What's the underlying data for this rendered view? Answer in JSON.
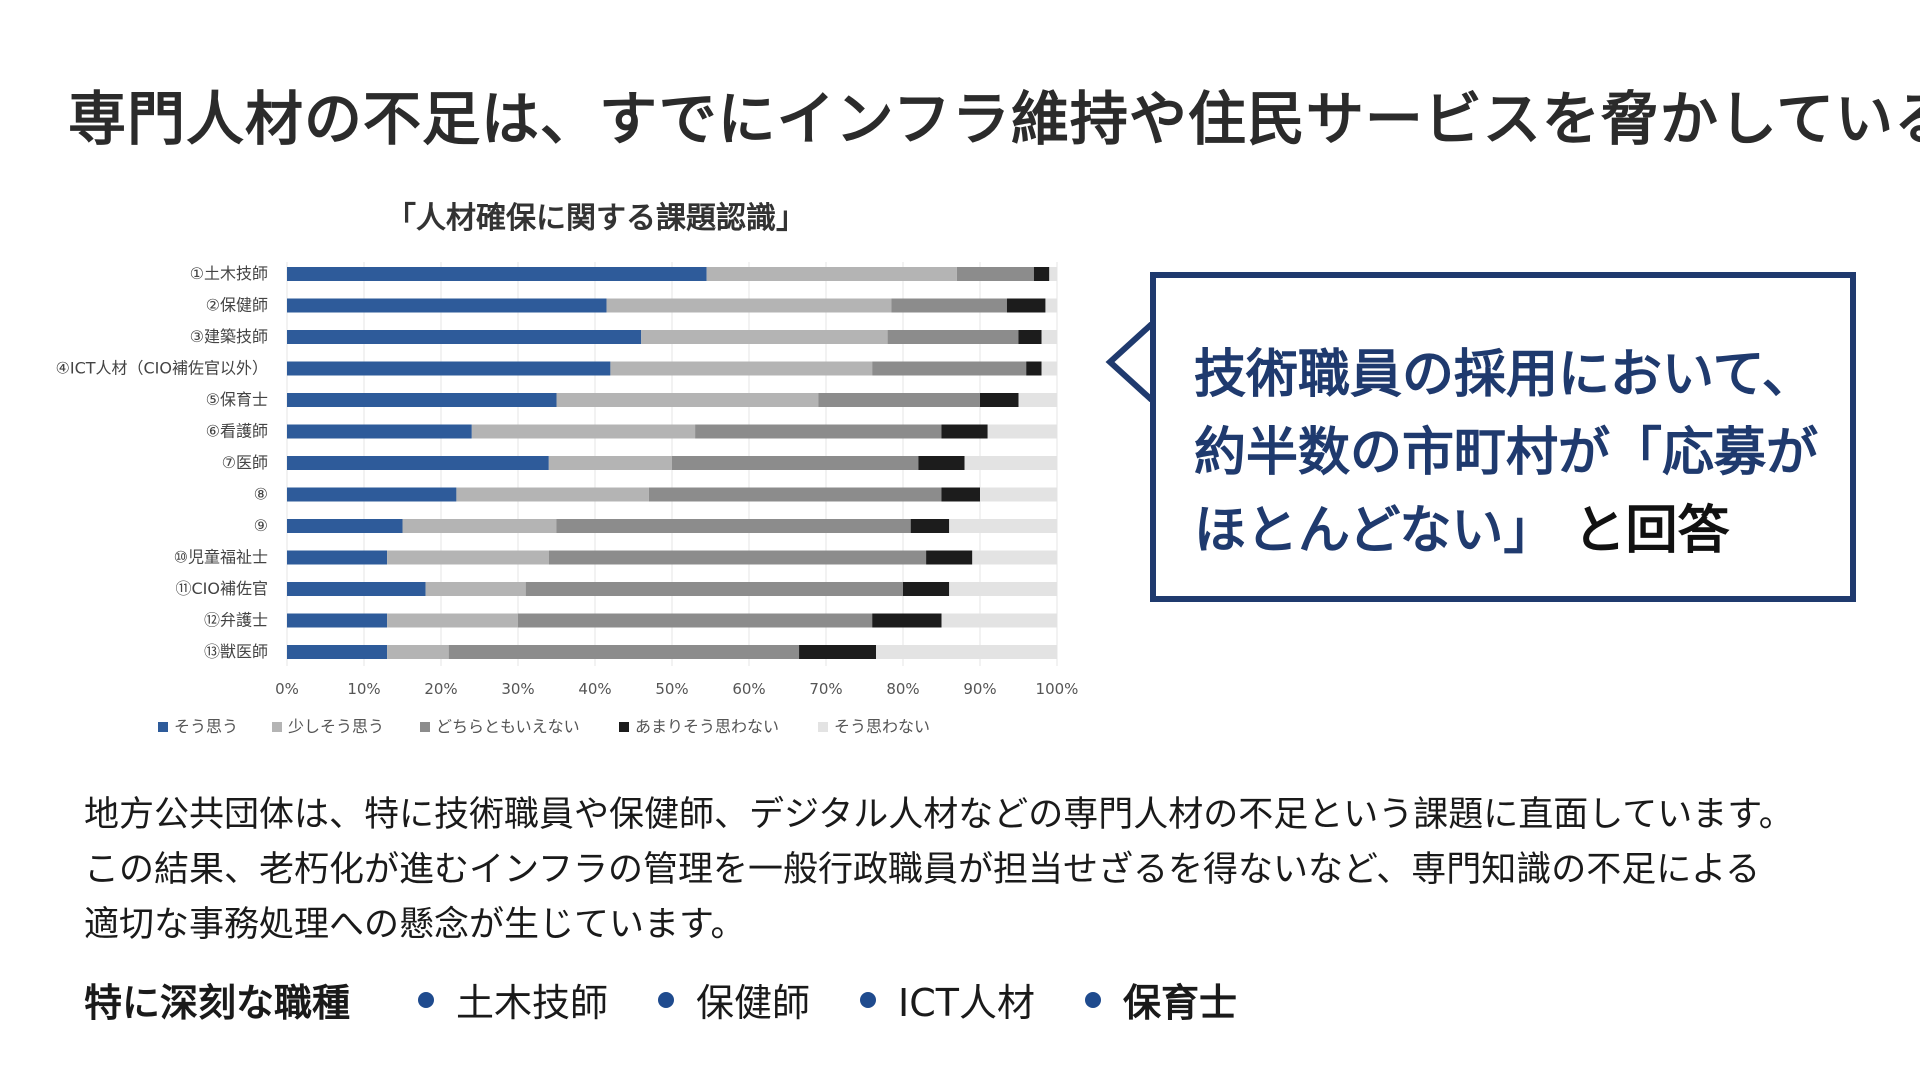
{
  "headline": "専門人材の不足は、すでにインフラ維持や住民サービスを脅かしている",
  "callout": {
    "line1": "技術職員の採用において、",
    "line2": "約半数の市町村が「応募が",
    "line3_blue": "ほとんどない」",
    "line3_dark": "と回答"
  },
  "body": {
    "line1": "地方公共団体は、特に技術職員や保健師、デジタル人材などの専門人材の不足という課題に直面しています。",
    "line2": "この結果、老朽化が進むインフラの管理を一般行政職員が担当せざるを得ないなど、専門知識の不足による",
    "line3": "適切な事務処理への懸念が生じています。"
  },
  "jobs": {
    "label": "特に深刻な職種",
    "items": [
      "土木技師",
      "保健師",
      "ICT人材",
      "保育士"
    ]
  },
  "chart_data": {
    "type": "bar",
    "orientation": "horizontal-stacked-100",
    "title": "「人材確保に関する課題認識」",
    "categories": [
      "①土木技師",
      "②保健師",
      "③建築技師",
      "④ICT人材（CIO補佐官以外）",
      "⑤保育士",
      "⑥看護師",
      "⑦医師",
      "⑧",
      "⑨",
      "⑩児童福祉士",
      "⑪CIO補佐官",
      "⑫弁護士",
      "⑬獣医師"
    ],
    "series": [
      {
        "name": "そう思う",
        "color": "#2e5b9a",
        "values": [
          54.5,
          41.5,
          46,
          42,
          35,
          24,
          34,
          22,
          15,
          13,
          18,
          13,
          13
        ]
      },
      {
        "name": "少しそう思う",
        "color": "#b4b4b4",
        "values": [
          32.5,
          37,
          32,
          34,
          34,
          29,
          16,
          25,
          20,
          21,
          13,
          17,
          8
        ]
      },
      {
        "name": "どちらともいえない",
        "color": "#8c8c8c",
        "values": [
          10,
          15,
          17,
          20,
          21,
          32,
          32,
          38,
          46,
          49,
          49,
          46,
          45.5
        ]
      },
      {
        "name": "あまりそう思わない",
        "color": "#1c1c1c",
        "values": [
          2,
          5,
          3,
          2,
          5,
          6,
          6,
          5,
          5,
          6,
          6,
          9,
          10
        ]
      },
      {
        "name": "そう思わない",
        "color": "#e3e3e3",
        "values": [
          1,
          1.5,
          2,
          2,
          5,
          9,
          12,
          10,
          14,
          11,
          14,
          15,
          23.5
        ]
      }
    ],
    "xticks": [
      "0%",
      "10%",
      "20%",
      "30%",
      "40%",
      "50%",
      "60%",
      "70%",
      "80%",
      "90%",
      "100%"
    ],
    "xlim": [
      0,
      100
    ],
    "legend_position": "bottom",
    "grid": true
  }
}
